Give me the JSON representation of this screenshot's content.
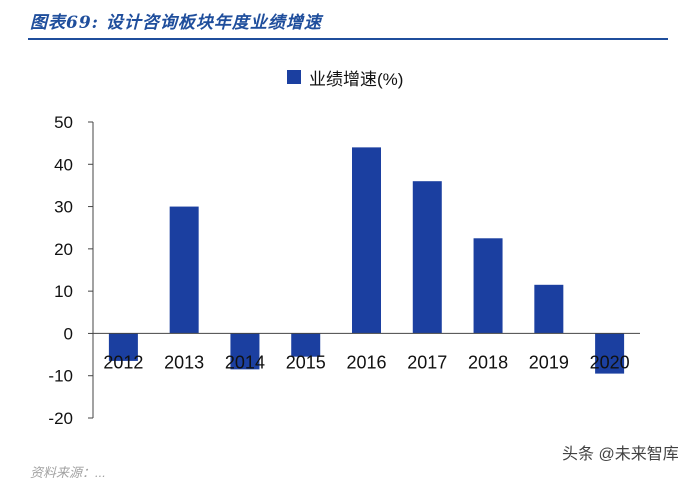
{
  "header": {
    "title": "图表69: 设计咨询板块年度业绩增速"
  },
  "chart_data": {
    "type": "bar",
    "categories": [
      "2012",
      "2013",
      "2014",
      "2015",
      "2016",
      "2017",
      "2018",
      "2019",
      "2020"
    ],
    "series": [
      {
        "name": "业绩增速(%)",
        "values": [
          -6.5,
          30,
          -8.5,
          -5.5,
          44,
          36,
          22.5,
          11.5,
          -9.5
        ]
      }
    ],
    "ylim": [
      -20,
      50
    ],
    "yticks": [
      "50",
      "40",
      "30",
      "20",
      "10",
      "0",
      "-10",
      "-20"
    ],
    "grid": false,
    "legend": "top-center",
    "bar_color": "#1b3fa0"
  },
  "footer": {
    "source_fragment": "资料来源：..."
  },
  "watermark": {
    "text": "头条 @未来智库"
  }
}
